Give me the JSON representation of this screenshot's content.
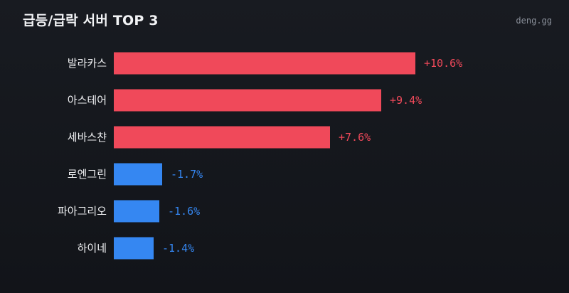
{
  "header": {
    "title": "급등/급락 서버 TOP 3",
    "brand": "deng.gg"
  },
  "colors": {
    "positive": "#f0495a",
    "negative": "#3587f2"
  },
  "chart_data": {
    "type": "bar",
    "orientation": "horizontal",
    "title": "급등/급락 서버 TOP 3",
    "categories": [
      "발라카스",
      "아스테어",
      "세바스챤",
      "로엔그린",
      "파아그리오",
      "하이네"
    ],
    "values": [
      10.6,
      9.4,
      7.6,
      -1.7,
      -1.6,
      -1.4
    ],
    "value_labels": [
      "+10.6%",
      "+9.4%",
      "+7.6%",
      "-1.7%",
      "-1.6%",
      "-1.4%"
    ],
    "grid": false,
    "legend": "none"
  }
}
